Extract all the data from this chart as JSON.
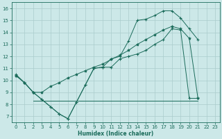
{
  "bg_color": "#cce8e8",
  "grid_color": "#b0d4d4",
  "line_color": "#1a6b5a",
  "xlabel": "Humidex (Indice chaleur)",
  "xlim": [
    -0.5,
    23.5
  ],
  "ylim": [
    6.5,
    16.5
  ],
  "yticks": [
    7,
    8,
    9,
    10,
    11,
    12,
    13,
    14,
    15,
    16
  ],
  "xticks": [
    0,
    1,
    2,
    3,
    4,
    5,
    6,
    7,
    8,
    9,
    10,
    11,
    12,
    13,
    14,
    15,
    16,
    17,
    18,
    19,
    20,
    21,
    22,
    23
  ],
  "line1_x": [
    0,
    1,
    2,
    3,
    4,
    5,
    6,
    7,
    8,
    9,
    10,
    11,
    12,
    13,
    14,
    15,
    16,
    17,
    18,
    19,
    20,
    21
  ],
  "line1_y": [
    10.5,
    9.8,
    9.0,
    8.4,
    7.8,
    7.2,
    6.8,
    8.2,
    9.6,
    11.0,
    11.1,
    11.8,
    12.0,
    13.3,
    15.0,
    15.1,
    15.4,
    15.8,
    15.8,
    15.2,
    14.3,
    13.4
  ],
  "line2_x": [
    0,
    1,
    2,
    3,
    4,
    5,
    6,
    7,
    8,
    9,
    10,
    11,
    12,
    13,
    14,
    15,
    16,
    17,
    18,
    19,
    20,
    21
  ],
  "line2_y": [
    10.4,
    9.8,
    9.0,
    9.0,
    9.5,
    9.8,
    10.2,
    10.5,
    10.8,
    11.1,
    11.35,
    11.75,
    12.1,
    12.5,
    13.0,
    13.4,
    13.8,
    14.2,
    14.5,
    14.3,
    13.5,
    8.5
  ],
  "line3_x": [
    2,
    3,
    20,
    21
  ],
  "line3_y": [
    8.3,
    8.3,
    8.3,
    8.3
  ],
  "line4_x": [
    0,
    1,
    2,
    3,
    4,
    5,
    6,
    7,
    8,
    9,
    10,
    11,
    12,
    13,
    14,
    15,
    16,
    17,
    18,
    19,
    20,
    21
  ],
  "line4_y": [
    10.4,
    9.8,
    9.0,
    8.4,
    7.8,
    7.2,
    6.8,
    8.2,
    9.6,
    11.0,
    11.1,
    11.1,
    11.8,
    12.0,
    12.2,
    12.5,
    13.0,
    13.4,
    14.3,
    14.2,
    8.5,
    8.5
  ]
}
